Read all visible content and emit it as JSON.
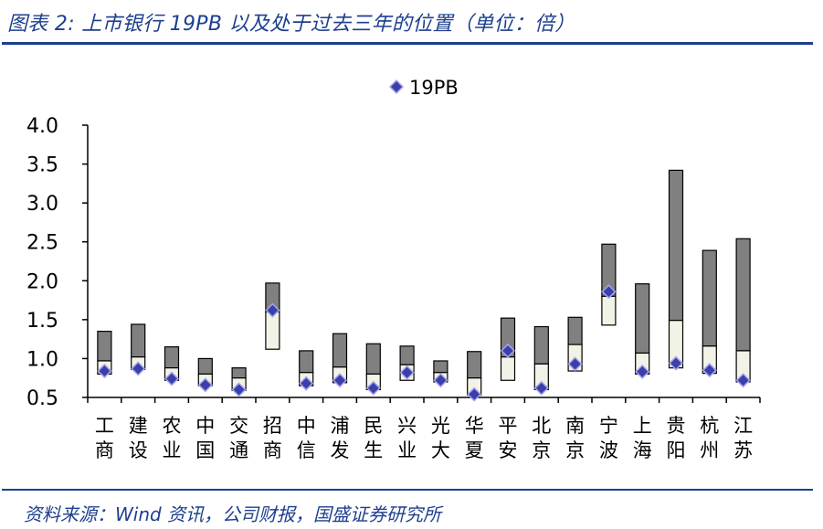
{
  "header": {
    "title": "图表 2:  上市银行 19PB 以及处于过去三年的位置（单位：倍）"
  },
  "footer": {
    "source": "资料来源：Wind 资讯，公司财报，国盛证券研究所"
  },
  "colors": {
    "brand_blue": "#1d3f8f",
    "upper_bar": "#808080",
    "lower_bar": "#f2f2e6",
    "marker": "#3b3fa8",
    "marker_edge": "#a4a4f0"
  },
  "chart_data": {
    "type": "range_bar",
    "title": "",
    "xlabel": "",
    "ylabel": "",
    "ylim": [
      0.5,
      4.0
    ],
    "y_ticks": [
      "0.5",
      "1.0",
      "1.5",
      "2.0",
      "2.5",
      "3.0",
      "3.5",
      "4.0"
    ],
    "legend": {
      "label": "19PB",
      "position": "top-center"
    },
    "categories": [
      [
        "工",
        "商"
      ],
      [
        "建",
        "设"
      ],
      [
        "农",
        "业"
      ],
      [
        "中",
        "国"
      ],
      [
        "交",
        "通"
      ],
      [
        "招",
        "商"
      ],
      [
        "中",
        "信"
      ],
      [
        "浦",
        "发"
      ],
      [
        "民",
        "生"
      ],
      [
        "兴",
        "业"
      ],
      [
        "光",
        "大"
      ],
      [
        "华",
        "夏"
      ],
      [
        "平",
        "安"
      ],
      [
        "北",
        "京"
      ],
      [
        "南",
        "京"
      ],
      [
        "宁",
        "波"
      ],
      [
        "上",
        "海"
      ],
      [
        "贵",
        "阳"
      ],
      [
        "杭",
        "州"
      ],
      [
        "江",
        "苏"
      ]
    ],
    "series": [
      {
        "name": "low",
        "values": [
          0.8,
          0.86,
          0.72,
          0.65,
          0.59,
          1.12,
          0.65,
          0.69,
          0.6,
          0.72,
          0.7,
          0.53,
          0.72,
          0.6,
          0.84,
          1.43,
          0.8,
          0.88,
          0.81,
          0.7
        ]
      },
      {
        "name": "19PB",
        "values": [
          0.84,
          0.87,
          0.74,
          0.66,
          0.6,
          1.62,
          0.68,
          0.72,
          0.62,
          0.82,
          0.72,
          0.54,
          1.1,
          0.62,
          0.93,
          1.86,
          0.83,
          0.94,
          0.85,
          0.72
        ]
      },
      {
        "name": "mid",
        "values": [
          0.97,
          1.02,
          0.88,
          0.8,
          0.75,
          1.6,
          0.82,
          0.89,
          0.8,
          0.92,
          0.82,
          0.75,
          1.02,
          0.93,
          1.18,
          1.8,
          1.07,
          1.49,
          1.16,
          1.1
        ]
      },
      {
        "name": "high",
        "values": [
          1.35,
          1.44,
          1.15,
          1.0,
          0.88,
          1.97,
          1.1,
          1.32,
          1.19,
          1.16,
          0.97,
          1.09,
          1.52,
          1.41,
          1.53,
          2.47,
          1.96,
          3.42,
          2.39,
          2.54
        ]
      }
    ]
  }
}
